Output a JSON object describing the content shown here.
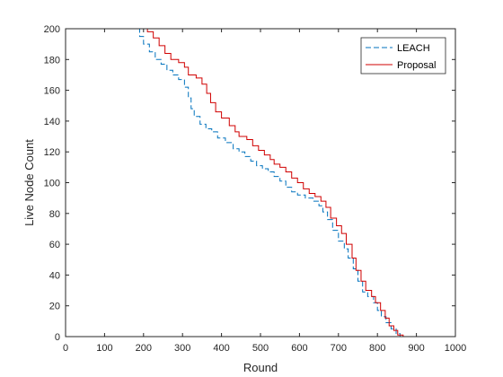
{
  "chart_data": {
    "type": "line",
    "xlabel": "Round",
    "ylabel": "Live Node Count",
    "xlim": [
      0,
      1000
    ],
    "ylim": [
      0,
      200
    ],
    "xticks": [
      0,
      100,
      200,
      300,
      400,
      500,
      600,
      700,
      800,
      900,
      1000
    ],
    "yticks": [
      0,
      20,
      40,
      60,
      80,
      100,
      120,
      140,
      160,
      180,
      200
    ],
    "grid": false,
    "legend_position": "top-right",
    "series": [
      {
        "name": "LEACH",
        "color": "#0072BD",
        "style": "dashed",
        "points": [
          [
            0,
            200
          ],
          [
            185,
            200
          ],
          [
            190,
            195
          ],
          [
            200,
            190
          ],
          [
            215,
            185
          ],
          [
            230,
            180
          ],
          [
            245,
            177
          ],
          [
            260,
            173
          ],
          [
            275,
            170
          ],
          [
            290,
            167
          ],
          [
            305,
            162
          ],
          [
            315,
            155
          ],
          [
            322,
            148
          ],
          [
            330,
            143
          ],
          [
            345,
            138
          ],
          [
            360,
            135
          ],
          [
            375,
            133
          ],
          [
            390,
            129
          ],
          [
            410,
            126
          ],
          [
            430,
            122
          ],
          [
            445,
            120
          ],
          [
            460,
            117
          ],
          [
            475,
            114
          ],
          [
            490,
            111
          ],
          [
            505,
            109
          ],
          [
            520,
            107
          ],
          [
            535,
            104
          ],
          [
            550,
            101
          ],
          [
            565,
            97
          ],
          [
            580,
            94
          ],
          [
            595,
            92
          ],
          [
            615,
            90
          ],
          [
            635,
            88
          ],
          [
            650,
            85
          ],
          [
            660,
            81
          ],
          [
            672,
            76
          ],
          [
            685,
            69
          ],
          [
            700,
            62
          ],
          [
            715,
            57
          ],
          [
            725,
            51
          ],
          [
            738,
            44
          ],
          [
            750,
            36
          ],
          [
            762,
            29
          ],
          [
            775,
            26
          ],
          [
            790,
            22
          ],
          [
            800,
            17
          ],
          [
            810,
            13
          ],
          [
            822,
            9
          ],
          [
            835,
            5
          ],
          [
            848,
            2
          ],
          [
            858,
            0
          ],
          [
            1000,
            0
          ]
        ]
      },
      {
        "name": "Proposal",
        "color": "#D00000",
        "style": "solid",
        "points": [
          [
            0,
            200
          ],
          [
            198,
            200
          ],
          [
            210,
            198
          ],
          [
            225,
            194
          ],
          [
            240,
            189
          ],
          [
            255,
            184
          ],
          [
            270,
            180
          ],
          [
            290,
            178
          ],
          [
            305,
            175
          ],
          [
            315,
            170
          ],
          [
            335,
            168
          ],
          [
            350,
            164
          ],
          [
            362,
            158
          ],
          [
            372,
            152
          ],
          [
            385,
            146
          ],
          [
            400,
            142
          ],
          [
            420,
            137
          ],
          [
            435,
            133
          ],
          [
            445,
            130
          ],
          [
            465,
            128
          ],
          [
            480,
            124
          ],
          [
            495,
            121
          ],
          [
            510,
            118
          ],
          [
            525,
            115
          ],
          [
            535,
            112
          ],
          [
            550,
            110
          ],
          [
            565,
            107
          ],
          [
            580,
            103
          ],
          [
            595,
            100
          ],
          [
            610,
            96
          ],
          [
            625,
            93
          ],
          [
            640,
            91
          ],
          [
            655,
            88
          ],
          [
            668,
            84
          ],
          [
            680,
            77
          ],
          [
            695,
            72
          ],
          [
            708,
            67
          ],
          [
            720,
            60
          ],
          [
            735,
            51
          ],
          [
            745,
            43
          ],
          [
            758,
            36
          ],
          [
            770,
            30
          ],
          [
            785,
            26
          ],
          [
            795,
            22
          ],
          [
            808,
            17
          ],
          [
            820,
            12
          ],
          [
            830,
            7
          ],
          [
            842,
            4
          ],
          [
            852,
            1
          ],
          [
            866,
            0
          ],
          [
            1000,
            0
          ]
        ]
      }
    ]
  }
}
